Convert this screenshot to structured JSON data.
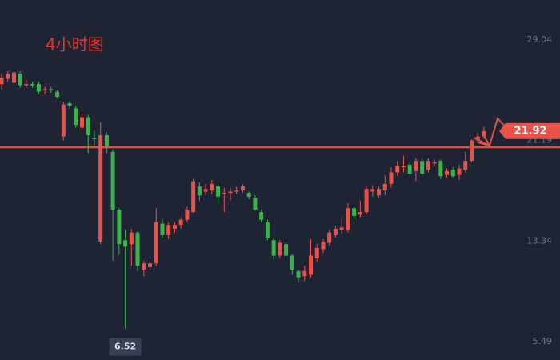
{
  "chart_data": {
    "type": "candlestick",
    "title": "4小时图",
    "up_color": "#e8524a",
    "down_color": "#3cb34a",
    "reference_line": 20.67,
    "reference_color": "#e0533f",
    "ylim": [
      4.05,
      32.16
    ],
    "yticks": [
      29.04,
      21.19,
      13.34,
      5.49
    ],
    "grid": false,
    "open": [
      25.6,
      26.0,
      25.7,
      26.4,
      25.5,
      25.6,
      25.6,
      25.1,
      25.2,
      25.0,
      21.5,
      24.1,
      23.7,
      22.2,
      23.0,
      21.4,
      13.3,
      21.6,
      20.3,
      15.8,
      13.4,
      13.1,
      14.0,
      11.1,
      11.3,
      11.6,
      14.7,
      13.8,
      14.3,
      14.6,
      15.0,
      15.6,
      17.6,
      17.2,
      17.3,
      17.6,
      17.0,
      17.1,
      17.2,
      17.3,
      17.1,
      16.7,
      15.6,
      14.8,
      13.4,
      12.2,
      13.1,
      12.2,
      11.0,
      10.6,
      10.7,
      12.0,
      12.7,
      13.2,
      13.8,
      14.2,
      14.2,
      15.9,
      15.4,
      15.6,
      17.2,
      16.9,
      17.3,
      17.8,
      18.7,
      19.1,
      19.3,
      18.8,
      19.6,
      18.9,
      19.4,
      19.6,
      18.5,
      18.9,
      18.5,
      18.9,
      19.6,
      21.2,
      21.5
    ],
    "high": [
      26.4,
      26.6,
      26.6,
      26.6,
      25.9,
      25.8,
      25.8,
      25.4,
      25.4,
      25.1,
      24.2,
      24.3,
      23.9,
      23.3,
      23.2,
      22.0,
      22.6,
      21.8,
      20.5,
      15.9,
      14.2,
      14.3,
      14.1,
      11.8,
      11.8,
      15.9,
      15.1,
      14.8,
      14.8,
      15.2,
      16.0,
      18.2,
      17.9,
      17.8,
      18.1,
      17.8,
      17.5,
      17.5,
      17.6,
      17.8,
      17.2,
      16.9,
      15.8,
      15.0,
      13.6,
      13.4,
      13.3,
      12.3,
      11.1,
      11.4,
      13.5,
      13.1,
      13.5,
      14.2,
      14.5,
      15.2,
      16.3,
      16.1,
      16.5,
      17.6,
      17.7,
      17.6,
      18.5,
      19.1,
      19.6,
      20.0,
      19.5,
      19.8,
      19.8,
      19.8,
      19.7,
      19.7,
      19.0,
      19.1,
      19.3,
      20.3,
      21.3,
      21.8,
      22.3
    ],
    "low": [
      25.2,
      25.8,
      25.5,
      25.3,
      25.3,
      25.3,
      24.8,
      24.8,
      24.9,
      24.5,
      21.2,
      23.7,
      22.2,
      22.0,
      20.2,
      20.8,
      13.1,
      20.2,
      11.8,
      12.3,
      6.52,
      11.4,
      11.0,
      10.6,
      11.1,
      11.4,
      13.6,
      13.5,
      14.0,
      14.3,
      14.8,
      15.5,
      16.5,
      16.9,
      17.0,
      16.2,
      15.6,
      16.5,
      17.0,
      17.1,
      16.6,
      15.7,
      14.8,
      13.4,
      11.9,
      12.0,
      12.0,
      10.7,
      10.1,
      10.2,
      10.5,
      11.7,
      12.4,
      13.0,
      13.6,
      13.9,
      14.0,
      15.0,
      15.2,
      15.4,
      16.8,
      16.7,
      16.9,
      17.5,
      18.4,
      18.7,
      18.5,
      18.0,
      18.3,
      18.7,
      19.2,
      18.2,
      18.3,
      18.3,
      18.1,
      18.7,
      19.5,
      21.0,
      21.3
    ],
    "close": [
      26.1,
      26.4,
      26.5,
      25.5,
      25.6,
      25.5,
      25.0,
      25.2,
      25.1,
      24.6,
      24.0,
      23.9,
      22.4,
      23.0,
      21.6,
      21.3,
      21.6,
      20.6,
      15.8,
      13.1,
      12.9,
      14.0,
      11.4,
      11.6,
      11.6,
      14.8,
      13.8,
      14.6,
      14.6,
      15.0,
      15.8,
      18.0,
      16.9,
      17.4,
      17.8,
      16.8,
      17.1,
      17.2,
      17.3,
      17.6,
      16.8,
      15.8,
      15.0,
      13.6,
      12.2,
      13.2,
      12.2,
      11.1,
      10.5,
      11.0,
      12.2,
      12.8,
      13.3,
      14.0,
      14.3,
      14.4,
      15.9,
      15.3,
      15.6,
      17.4,
      17.4,
      17.4,
      17.8,
      18.7,
      19.2,
      19.2,
      18.6,
      19.6,
      18.6,
      19.6,
      19.5,
      18.4,
      18.8,
      18.4,
      19.0,
      19.6,
      21.2,
      21.5,
      21.92
    ]
  }
}
